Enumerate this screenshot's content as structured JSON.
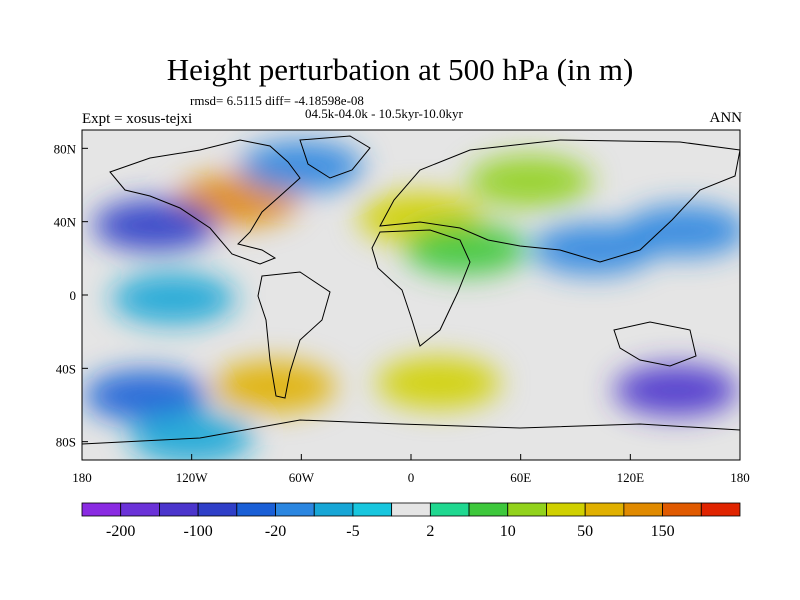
{
  "chart_data": {
    "type": "heatmap",
    "title": "Height perturbation at 500 hPa (in m)",
    "stats_line": "rmsd= 6.5115 diff= -4.18598e-08",
    "period_line": "04.5k-04.0k - 10.5kyr-10.0kyr",
    "experiment": "Expt = xosus-tejxi",
    "season": "ANN",
    "x_ticks": [
      {
        "value": -180,
        "label": "180"
      },
      {
        "value": -120,
        "label": "120W"
      },
      {
        "value": -60,
        "label": "60W"
      },
      {
        "value": 0,
        "label": "0"
      },
      {
        "value": 60,
        "label": "60E"
      },
      {
        "value": 120,
        "label": "120E"
      },
      {
        "value": 180,
        "label": "180"
      }
    ],
    "y_ticks": [
      {
        "value": 80,
        "label": "80N"
      },
      {
        "value": 40,
        "label": "40N"
      },
      {
        "value": 0,
        "label": "0"
      },
      {
        "value": -40,
        "label": "40S"
      },
      {
        "value": -80,
        "label": "80S"
      }
    ],
    "xlim": [
      -180,
      180
    ],
    "ylim": [
      -90,
      90
    ],
    "colorbar": {
      "colors": [
        "#8a2be2",
        "#6b32d8",
        "#4b35cc",
        "#2f3fc8",
        "#1a5fd6",
        "#2b86e0",
        "#17a6d6",
        "#18c6de",
        "#e5e5e5",
        "#20d890",
        "#3ec83c",
        "#92d21c",
        "#d0d000",
        "#e0b000",
        "#e08a00",
        "#e05a00",
        "#e02400"
      ],
      "labels": [
        {
          "boundary": 1,
          "text": "-200"
        },
        {
          "boundary": 3,
          "text": "-100"
        },
        {
          "boundary": 5,
          "text": "-20"
        },
        {
          "boundary": 7,
          "text": "-5"
        },
        {
          "boundary": 9,
          "text": "2"
        },
        {
          "boundary": 11,
          "text": "10"
        },
        {
          "boundary": 13,
          "text": "50"
        },
        {
          "boundary": 15,
          "text": "150"
        }
      ]
    },
    "field_features": [
      {
        "region": "North America / Canada",
        "level": 14,
        "lon": -95,
        "lat": 52
      },
      {
        "region": "Europe / Mediterranean",
        "level": 12,
        "lon": 5,
        "lat": 42
      },
      {
        "region": "Siberia",
        "level": 11,
        "lon": 65,
        "lat": 62
      },
      {
        "region": "Western Siberia / Central Asia",
        "level": 10,
        "lon": 30,
        "lat": 25
      },
      {
        "region": "North Pacific east",
        "level": 3,
        "lon": -140,
        "lat": 38
      },
      {
        "region": "North Pacific west",
        "level": 5,
        "lon": 150,
        "lat": 35
      },
      {
        "region": "Greenland / North Atlantic",
        "level": 5,
        "lon": -60,
        "lat": 70
      },
      {
        "region": "Southeast Asia",
        "level": 5,
        "lon": 100,
        "lat": 25
      },
      {
        "region": "South Pacific",
        "level": 4,
        "lon": -145,
        "lat": -55
      },
      {
        "region": "South America south",
        "level": 13,
        "lon": -75,
        "lat": -50
      },
      {
        "region": "South Atlantic / Indian",
        "level": 12,
        "lon": 15,
        "lat": -48
      },
      {
        "region": "Australia south",
        "level": 2,
        "lon": 145,
        "lat": -52
      },
      {
        "region": "Tropical East Pacific",
        "level": 6,
        "lon": -130,
        "lat": -2
      },
      {
        "region": "Antarctica",
        "level": 6,
        "lon": -120,
        "lat": -78
      }
    ]
  }
}
